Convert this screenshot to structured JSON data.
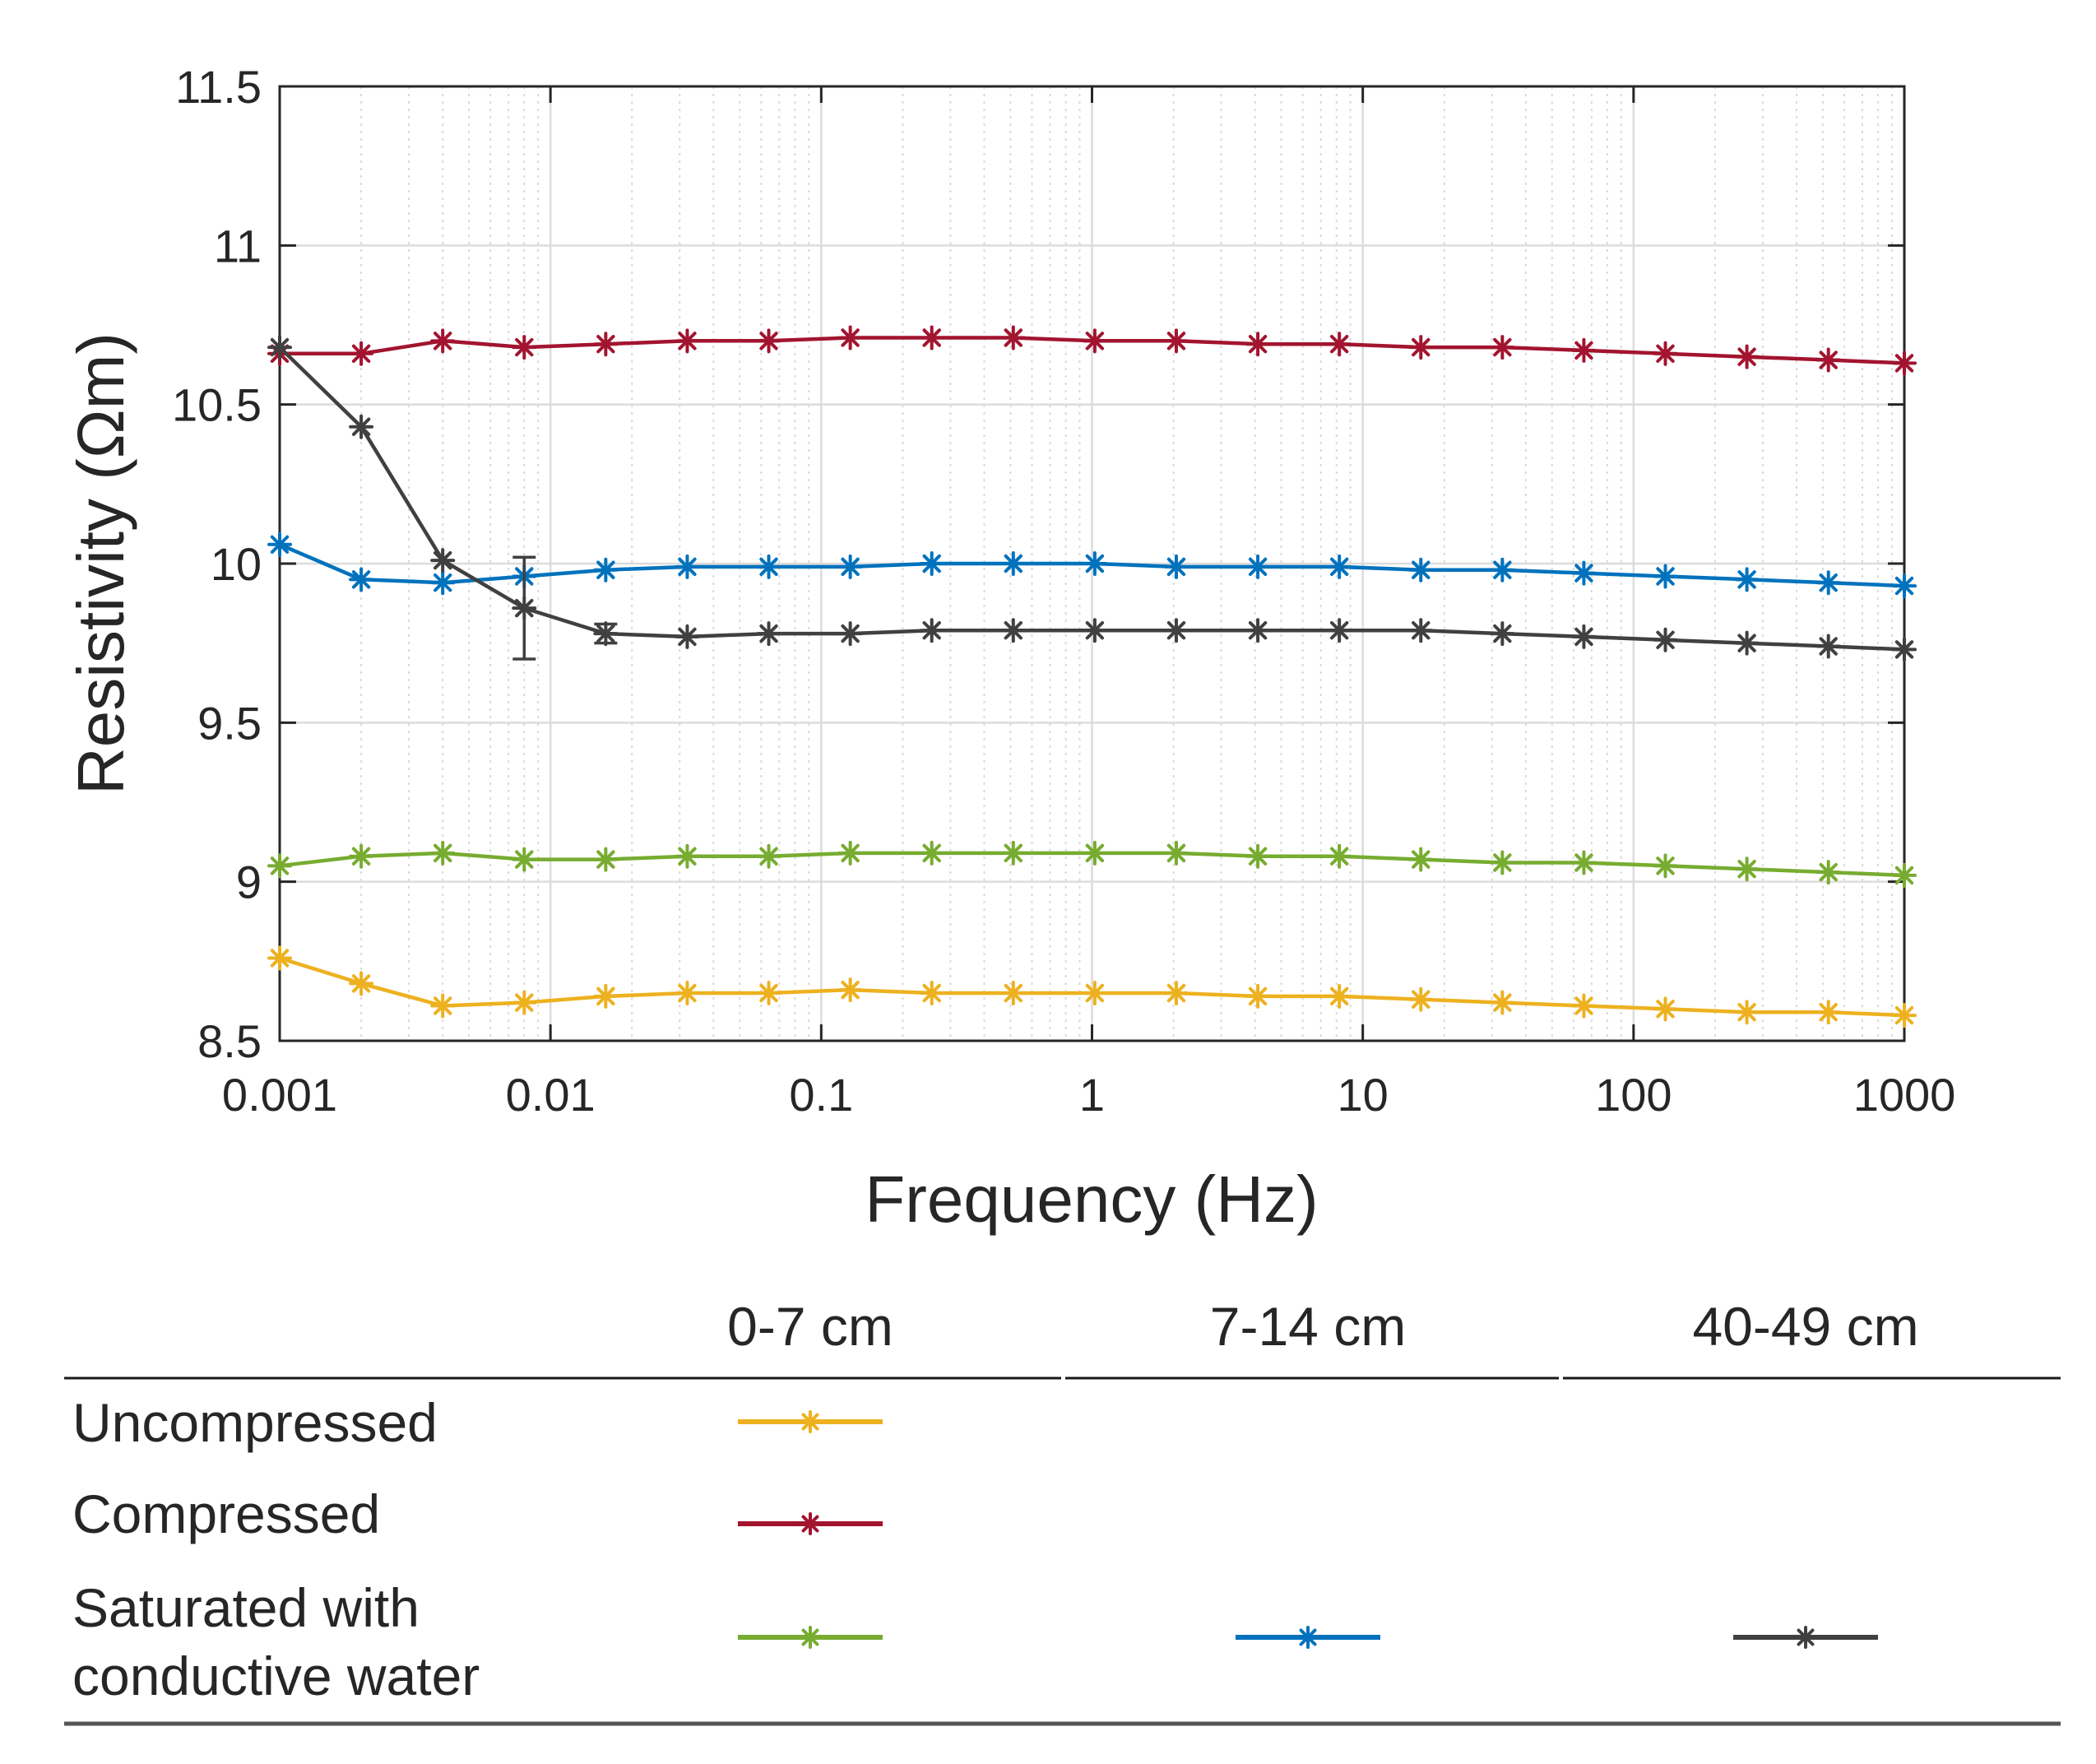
{
  "chart_data": {
    "type": "line",
    "xscale": "log",
    "xlabel": "Frequency (Hz)",
    "ylabel": "Resistivity (Ωm)",
    "xlim": [
      0.001,
      1000
    ],
    "ylim": [
      8.5,
      11.5
    ],
    "grid": true,
    "x_ticks": [
      0.001,
      0.01,
      0.1,
      1,
      10,
      100,
      1000
    ],
    "x_tick_labels": [
      "0.001",
      "0.01",
      "0.1",
      "1",
      "10",
      "100",
      "1000"
    ],
    "y_ticks": [
      8.5,
      9,
      9.5,
      10,
      10.5,
      11,
      11.5
    ],
    "y_tick_labels": [
      "8.5",
      "9",
      "9.5",
      "10",
      "10.5",
      "11",
      "11.5"
    ],
    "x": [
      0.001,
      0.002,
      0.004,
      0.008,
      0.016,
      0.032,
      0.064,
      0.128,
      0.256,
      0.512,
      1.024,
      2.048,
      4.096,
      8.192,
      16.384,
      32.768,
      65.536,
      131.072,
      262.144,
      524.288,
      1000
    ],
    "series": [
      {
        "name": "Uncompressed 0-7 cm",
        "color": "#EDB120",
        "values": [
          8.76,
          8.68,
          8.61,
          8.62,
          8.64,
          8.65,
          8.65,
          8.66,
          8.65,
          8.65,
          8.65,
          8.65,
          8.64,
          8.64,
          8.63,
          8.62,
          8.61,
          8.6,
          8.59,
          8.59,
          8.58
        ]
      },
      {
        "name": "Compressed 0-7 cm",
        "color": "#A2142F",
        "values": [
          10.66,
          10.66,
          10.7,
          10.68,
          10.69,
          10.7,
          10.7,
          10.71,
          10.71,
          10.71,
          10.7,
          10.7,
          10.69,
          10.69,
          10.68,
          10.68,
          10.67,
          10.66,
          10.65,
          10.64,
          10.63
        ]
      },
      {
        "name": "Saturated with conductive water 0-7 cm",
        "color": "#77AC30",
        "values": [
          9.05,
          9.08,
          9.09,
          9.07,
          9.07,
          9.08,
          9.08,
          9.09,
          9.09,
          9.09,
          9.09,
          9.09,
          9.08,
          9.08,
          9.07,
          9.06,
          9.06,
          9.05,
          9.04,
          9.03,
          9.02
        ]
      },
      {
        "name": "Saturated with conductive water 7-14 cm",
        "color": "#0072BD",
        "values": [
          10.06,
          9.95,
          9.94,
          9.96,
          9.98,
          9.99,
          9.99,
          9.99,
          10.0,
          10.0,
          10.0,
          9.99,
          9.99,
          9.99,
          9.98,
          9.98,
          9.97,
          9.96,
          9.95,
          9.94,
          9.93
        ]
      },
      {
        "name": "Saturated with conductive water 40-49 cm",
        "color": "#404040",
        "values": [
          10.68,
          10.43,
          10.01,
          9.86,
          9.78,
          9.77,
          9.78,
          9.78,
          9.79,
          9.79,
          9.79,
          9.79,
          9.79,
          9.79,
          9.79,
          9.78,
          9.77,
          9.76,
          9.75,
          9.74,
          9.73
        ],
        "error": [
          0,
          0,
          0,
          0.16,
          0.03,
          0,
          0,
          0,
          0,
          0,
          0,
          0,
          0,
          0,
          0,
          0,
          0,
          0,
          0,
          0,
          0
        ]
      }
    ]
  },
  "legend_table": {
    "columns": [
      "0-7 cm",
      "7-14 cm",
      "40-49 cm"
    ],
    "rows": [
      {
        "label_lines": [
          "Uncompressed"
        ],
        "cells": [
          "#EDB120",
          null,
          null
        ]
      },
      {
        "label_lines": [
          "Compressed"
        ],
        "cells": [
          "#A2142F",
          null,
          null
        ]
      },
      {
        "label_lines": [
          "Saturated with",
          "conductive water"
        ],
        "cells": [
          "#77AC30",
          "#0072BD",
          "#404040"
        ]
      }
    ]
  }
}
